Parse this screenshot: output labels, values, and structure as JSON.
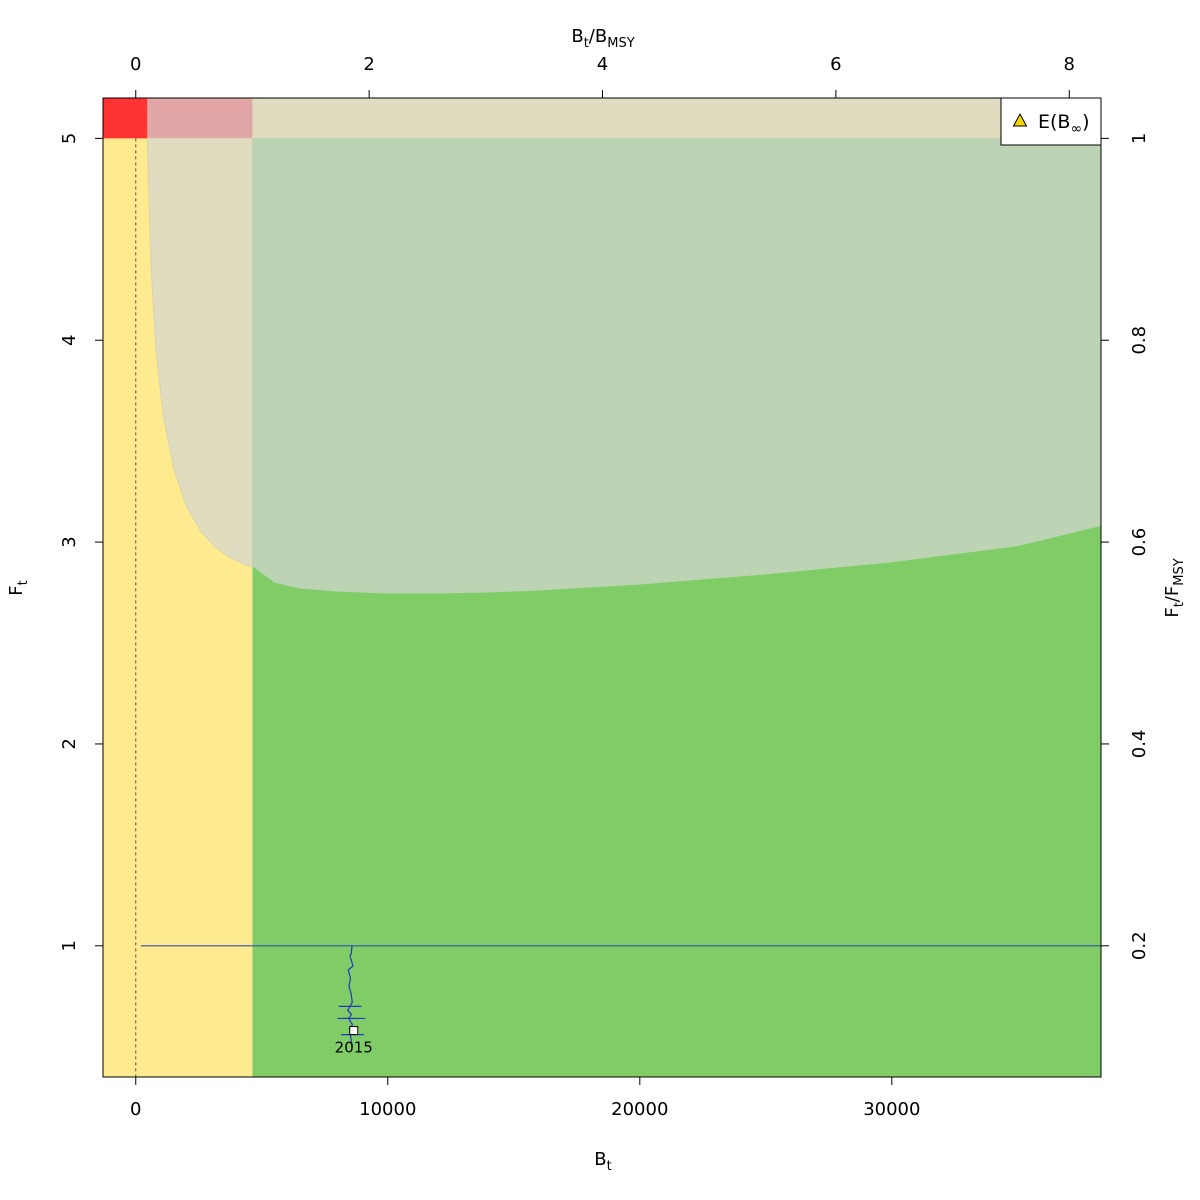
{
  "chart_data": {
    "type": "line",
    "xlabel": {
      "main": "B",
      "sub": "t"
    },
    "ylabel": {
      "main": "F",
      "sub": "t"
    },
    "top_xlabel": {
      "main1": "B",
      "sub1": "t",
      "sep": "/",
      "main2": "B",
      "sub2": "MSY"
    },
    "right_ylabel": {
      "main1": "F",
      "sub1": "t",
      "sep": "/",
      "main2": "F",
      "sub2": "MSY"
    },
    "xlim": [
      -1300,
      38300
    ],
    "ylim": [
      0.35,
      5.2
    ],
    "x_ticks": [
      0,
      10000,
      20000,
      30000
    ],
    "x_tick_labels": [
      "0",
      "10000",
      "20000",
      "30000"
    ],
    "y_ticks": [
      1,
      2,
      3,
      4,
      5
    ],
    "y_tick_labels": [
      "1",
      "2",
      "3",
      "4",
      "5"
    ],
    "top_ticks_ratio": [
      0,
      2,
      4,
      6,
      8
    ],
    "top_tick_labels": [
      "0",
      "2",
      "4",
      "6",
      "8"
    ],
    "right_ticks_ratio": [
      0.2,
      0.4,
      0.6,
      0.8,
      1.0
    ],
    "right_tick_labels": [
      "0.2",
      "0.4",
      "0.6",
      "0.8",
      "1"
    ],
    "bmsy": 4630,
    "fmsy": 5.0,
    "b_lim": 460,
    "lim_curve_x": [
      460,
      500,
      600,
      800,
      1100,
      1500,
      2000,
      2600,
      3200,
      3800,
      4300,
      4630
    ],
    "lim_curve_y": [
      5.0,
      4.8,
      4.38,
      3.95,
      3.62,
      3.37,
      3.18,
      3.05,
      2.97,
      2.92,
      2.89,
      2.88
    ],
    "boundary_x": [
      4630,
      5500,
      6500,
      8000,
      10000,
      12000,
      14000,
      16000,
      20000,
      25000,
      30000,
      35000,
      38300
    ],
    "boundary_y": [
      2.88,
      2.8,
      2.77,
      2.755,
      2.745,
      2.745,
      2.75,
      2.76,
      2.79,
      2.84,
      2.9,
      2.98,
      3.08
    ],
    "regions": {
      "colors": {
        "red": "#ff3333",
        "pink": "#e2a6a6",
        "tan": "#e0dcc0",
        "pale_green": "#bcd4b4",
        "yellow": "#ffeb8f",
        "green": "#80cc66"
      }
    },
    "fmsy_line": {
      "y": 1.0,
      "x_start": 200,
      "color": "#3650a8"
    },
    "trajectory": {
      "color": "#2436c4",
      "x": [
        8580,
        8550,
        8500,
        8620,
        8430,
        8520,
        8460,
        8550,
        8590,
        8410,
        8560,
        8450,
        8540,
        8600,
        8470,
        8560,
        8520,
        8600
      ],
      "y": [
        1.0,
        0.96,
        0.95,
        0.9,
        0.88,
        0.84,
        0.8,
        0.76,
        0.72,
        0.68,
        0.66,
        0.64,
        0.62,
        0.61,
        0.59,
        0.58,
        0.55,
        0.5
      ],
      "error_bars": [
        {
          "x": 8500,
          "y": 0.7,
          "half_width": 450
        },
        {
          "x": 8550,
          "y": 0.64,
          "half_width": 550
        },
        {
          "x": 8600,
          "y": 0.56,
          "half_width": 450
        }
      ],
      "last_point": {
        "x": 8650,
        "y": 0.58,
        "label": "2015"
      }
    },
    "legend": {
      "label": "E(B",
      "sub": "∞",
      "close": ")",
      "marker_color": "#f2d400",
      "position": "top-right"
    },
    "vertical_dashed": {
      "x": 0,
      "color": "#8b3a3a"
    }
  }
}
